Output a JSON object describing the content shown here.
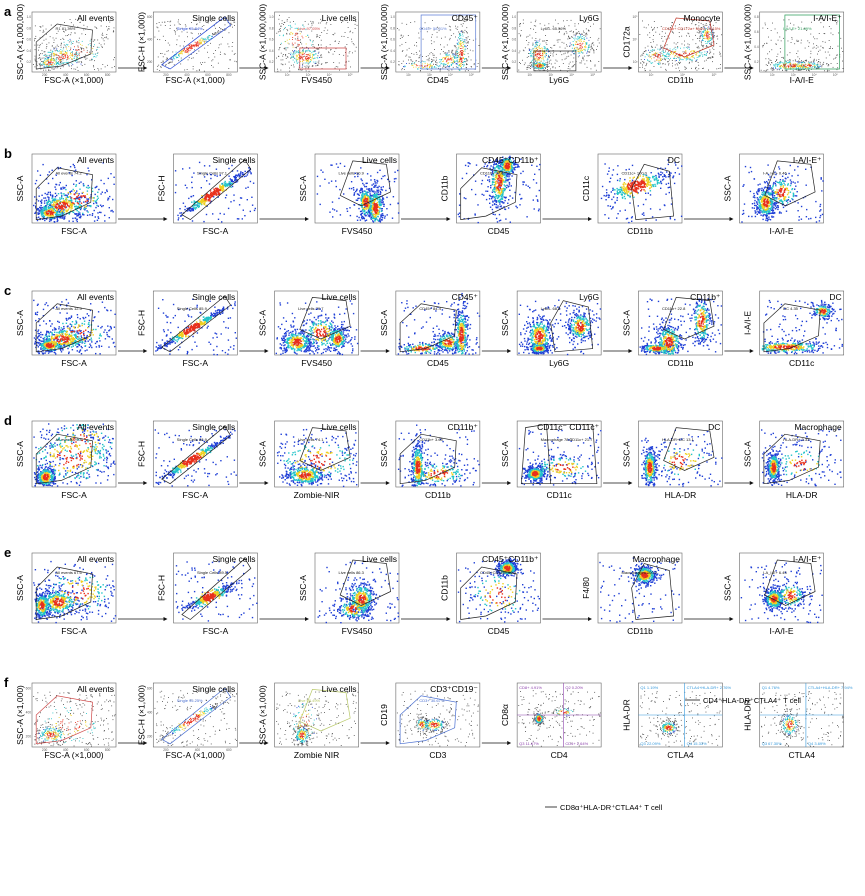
{
  "figure": {
    "rows": [
      {
        "letter": "a",
        "top": 4,
        "height": 84,
        "plots": [
          {
            "title": "All events",
            "xlabel": "FSC-A (×1,000)",
            "ylabel": "SSC-A (×1,000,000)",
            "gate": "polygon",
            "gate_color": "#333333",
            "gate_label": "R1 81.33%",
            "xticks": [
              "200",
              "400",
              "600",
              "800"
            ],
            "yticks": [
              "0.2",
              "0.4",
              "0.6",
              "0.8",
              "1.0"
            ],
            "density": "all",
            "style": "sparse"
          },
          {
            "title": "Single cells",
            "xlabel": "FSC-A (×1,000)",
            "ylabel": "FSC-H (×1,000)",
            "gate": "diagonal",
            "gate_color": "#2a4bd7",
            "gate_label": "Single 95.84%",
            "xticks": [
              "200",
              "400",
              "600",
              "800"
            ],
            "yticks": [
              "200",
              "400",
              "600"
            ],
            "density": "diag",
            "style": "sparse"
          },
          {
            "title": "Live cells",
            "xlabel": "FVS450",
            "ylabel": "SSC-A (×1,000,000)",
            "gate": "rect",
            "gate_color": "#d04a4a",
            "gate_label": "Live 97.05%",
            "xticks": [
              "10²",
              "10³",
              "10⁴",
              "10⁵"
            ],
            "yticks": [
              "0.2",
              "0.4",
              "0.6",
              "0.8",
              "1.0"
            ],
            "density": "live",
            "style": "sparse"
          },
          {
            "title": "CD45⁺",
            "xlabel": "CD45",
            "ylabel": "SSC-A (×1,000,000)",
            "gate": "rect",
            "gate_color": "#5f7fd6",
            "gate_label": "CD45+ 58.01%",
            "xticks": [
              "10²",
              "10³",
              "10⁴",
              "10⁵"
            ],
            "yticks": [
              "0.2",
              "0.4",
              "0.6",
              "0.8",
              "1.0"
            ],
            "density": "cd45",
            "style": "sparse"
          },
          {
            "title": "Ly6G",
            "xlabel": "Ly6G",
            "ylabel": "SSC-A (×1,000,000)",
            "gate": "rect",
            "gate_color": "#333333",
            "gate_label": "Ly6G- 65.56%",
            "xticks": [
              "10²",
              "10³",
              "10⁴",
              "10⁵"
            ],
            "yticks": [
              "0.2",
              "0.4",
              "0.6",
              "0.8",
              "1.0"
            ],
            "density": "ly6g",
            "style": "sparse"
          },
          {
            "title": "Monocyte",
            "xlabel": "CD11b",
            "ylabel": "CD172a",
            "gate": "polygon",
            "gate_color": "#c0392b",
            "gate_label": "CD11b+ CD172a+ Mono 16.15%",
            "xticks": [
              "10³",
              "10⁴",
              "10⁵"
            ],
            "yticks": [
              "10³",
              "10⁴",
              "10⁵"
            ],
            "density": "mono",
            "style": "sparse"
          },
          {
            "title": "I-A/I-E⁺",
            "xlabel": "I-A/I-E",
            "ylabel": "SSC-A (×1,000,000)",
            "gate": "rect",
            "gate_color": "#2e9e5b",
            "gate_label": "I-A/I-E+ 21.89%",
            "xticks": [
              "10²",
              "10³",
              "10⁴",
              "10⁵"
            ],
            "yticks": [
              "0.2",
              "0.4",
              "0.6",
              "0.8"
            ],
            "density": "iaie_low",
            "style": "sparse"
          }
        ]
      },
      {
        "letter": "b",
        "top": 146,
        "height": 93,
        "plots": [
          {
            "title": "All events",
            "xlabel": "FSC-A",
            "ylabel": "SSC-A",
            "gate": "polygon",
            "gate_color": "#222222",
            "gate_label": "All events 74.2",
            "xticks": [],
            "yticks": [],
            "density": "all",
            "style": "dense"
          },
          {
            "title": "Single cells",
            "xlabel": "FSC-A",
            "ylabel": "FSC-H",
            "gate": "diagonal",
            "gate_color": "#222222",
            "gate_label": "Single Cells 97.1",
            "xticks": [],
            "yticks": [],
            "density": "diag",
            "style": "dense"
          },
          {
            "title": "Live cells",
            "xlabel": "FVS450",
            "ylabel": "SSC-A",
            "gate": "polygon",
            "gate_color": "#222222",
            "gate_label": "Live cells 90.9",
            "xticks": [],
            "yticks": [],
            "density": "live_b",
            "style": "dense"
          },
          {
            "title": "CD45⁺CD11b⁺",
            "xlabel": "CD45",
            "ylabel": "CD11b",
            "gate": "polygon",
            "gate_color": "#222222",
            "gate_label": "CD11b+ 87.6",
            "xticks": [],
            "yticks": [],
            "density": "cd11b_high",
            "style": "dense"
          },
          {
            "title": "DC",
            "xlabel": "CD11b",
            "ylabel": "CD11c",
            "gate": "polygon",
            "gate_color": "#222222",
            "gate_label": "CD11c+ 100.0",
            "xticks": [],
            "yticks": [],
            "density": "dc_b",
            "style": "dense"
          },
          {
            "title": "I-A/I-E⁺",
            "xlabel": "I-A/I-E",
            "ylabel": "SSC-A",
            "gate": "polygon",
            "gate_color": "#222222",
            "gate_label": "I-A_I-E+ 0.46",
            "xticks": [],
            "yticks": [],
            "density": "iaie",
            "style": "dense"
          }
        ]
      },
      {
        "letter": "c",
        "top": 283,
        "height": 88,
        "plots": [
          {
            "title": "All events",
            "xlabel": "FSC-A",
            "ylabel": "SSC-A",
            "gate": "polygon",
            "gate_color": "#222222",
            "gate_label": "All events 12.5",
            "xticks": [],
            "yticks": [],
            "density": "all",
            "style": "dense"
          },
          {
            "title": "Single cells",
            "xlabel": "FSC-A",
            "ylabel": "FSC-H",
            "gate": "diagonal",
            "gate_color": "#222222",
            "gate_label": "Single Cells 85.9",
            "xticks": [],
            "yticks": [],
            "density": "diag",
            "style": "dense"
          },
          {
            "title": "Live cells",
            "xlabel": "FVS450",
            "ylabel": "SSC-A",
            "gate": "polygon",
            "gate_color": "#222222",
            "gate_label": "Live cells 79.7",
            "xticks": [],
            "yticks": [],
            "density": "live_c",
            "style": "dense"
          },
          {
            "title": "CD45⁺",
            "xlabel": "CD45",
            "ylabel": "SSC-A",
            "gate": "polygon",
            "gate_color": "#222222",
            "gate_label": "CD45+ 84.4",
            "xticks": [],
            "yticks": [],
            "density": "cd45",
            "style": "dense"
          },
          {
            "title": "Ly6G",
            "xlabel": "Ly6G",
            "ylabel": "SSC-A",
            "gate": "polygon",
            "gate_color": "#222222",
            "gate_label": "Ly6G- 68.2",
            "xticks": [],
            "yticks": [],
            "density": "ly6g",
            "style": "dense"
          },
          {
            "title": "CD11b⁺",
            "xlabel": "CD11b",
            "ylabel": "SSC-A",
            "gate": "polygon",
            "gate_color": "#222222",
            "gate_label": "CD11b+ 22.8",
            "xticks": [],
            "yticks": [],
            "density": "cd11b_c",
            "style": "dense"
          },
          {
            "title": "DC",
            "xlabel": "CD11c",
            "ylabel": "I-A/I-E",
            "gate": "polygon",
            "gate_color": "#222222",
            "gate_label": "DC 4.35",
            "xticks": [],
            "yticks": [],
            "density": "dc_c",
            "style": "dense"
          }
        ]
      },
      {
        "letter": "d",
        "top": 413,
        "height": 90,
        "plots": [
          {
            "title": "All events",
            "xlabel": "FSC-A",
            "ylabel": "SSC-A",
            "gate": "polygon",
            "gate_color": "#222222",
            "gate_label": "All events 79.8",
            "xticks": [],
            "yticks": [],
            "density": "all_d",
            "style": "dense"
          },
          {
            "title": "Single cells",
            "xlabel": "FSC-A",
            "ylabel": "FSC-H",
            "gate": "diagonal",
            "gate_color": "#222222",
            "gate_label": "Single Cells 88.9",
            "xticks": [],
            "yticks": [],
            "density": "diag",
            "style": "dense"
          },
          {
            "title": "Live cells",
            "xlabel": "Zombie-NIR",
            "ylabel": "SSC-A",
            "gate": "polygon",
            "gate_color": "#222222",
            "gate_label": "Live cells 74.1",
            "xticks": [],
            "yticks": [],
            "density": "live_d",
            "style": "dense"
          },
          {
            "title": "CD11b⁺",
            "xlabel": "CD11b",
            "ylabel": "SSC-A",
            "gate": "polygon",
            "gate_color": "#222222",
            "gate_label": "CD11b+ 3.65",
            "xticks": [],
            "yticks": [],
            "density": "cd11b_d",
            "style": "dense"
          },
          {
            "title": "CD11c⁻    CD11c⁺",
            "xlabel": "CD11c",
            "ylabel": "SSC-A",
            "gate": "polygon2",
            "gate_color": "#222222",
            "gate_label": "Macrophage 78.3",
            "gate_label2": "CD11c+ 21.7",
            "xticks": [],
            "yticks": [],
            "density": "cd11c_d",
            "style": "dense"
          },
          {
            "title": "DC",
            "xlabel": "HLA-DR",
            "ylabel": "SSC-A",
            "gate": "polygon",
            "gate_color": "#222222",
            "gate_label": "HLA-DR+DC 13.1",
            "xticks": [],
            "yticks": [],
            "density": "hla_d",
            "style": "dense"
          },
          {
            "title": "Macrophage",
            "xlabel": "HLA-DR",
            "ylabel": "SSC-A",
            "gate": "polygon",
            "gate_color": "#222222",
            "gate_label": "HLA-DR+ 3.33",
            "xticks": [],
            "yticks": [],
            "density": "hla_d2",
            "style": "dense"
          }
        ]
      },
      {
        "letter": "e",
        "top": 545,
        "height": 94,
        "plots": [
          {
            "title": "All events",
            "xlabel": "FSC-A",
            "ylabel": "SSC-A",
            "gate": "polygon",
            "gate_color": "#222222",
            "gate_label": "All events 67.6",
            "xticks": [],
            "yticks": [],
            "density": "all_e",
            "style": "dense"
          },
          {
            "title": "Single cells",
            "xlabel": "FSC-A",
            "ylabel": "FSC-H",
            "gate": "diagonal",
            "gate_color": "#222222",
            "gate_label": "Single Cells 89.5",
            "xticks": [],
            "yticks": [],
            "density": "diag_e",
            "style": "dense"
          },
          {
            "title": "Live cells",
            "xlabel": "FVS450",
            "ylabel": "SSC-A",
            "gate": "polygon",
            "gate_color": "#222222",
            "gate_label": "Live cells 86.3",
            "xticks": [],
            "yticks": [],
            "density": "live_e",
            "style": "dense"
          },
          {
            "title": "CD45⁺CD11b⁺",
            "xlabel": "CD45",
            "ylabel": "CD11b",
            "gate": "polygon",
            "gate_color": "#222222",
            "gate_label": "CD45+CD11b+ 59.0",
            "xticks": [],
            "yticks": [],
            "density": "cd45_e",
            "style": "dense"
          },
          {
            "title": "Macrophage",
            "xlabel": "CD11b",
            "ylabel": "F4/80",
            "gate": "polygon",
            "gate_color": "#222222",
            "gate_label": "Macrophages 100.0",
            "xticks": [],
            "yticks": [],
            "density": "mac_e",
            "style": "dense"
          },
          {
            "title": "I-A/I-E⁺",
            "xlabel": "I-A/I-E",
            "ylabel": "SSC-A",
            "gate": "polygon",
            "gate_color": "#222222",
            "gate_label": "I-A_I-E+ 6.45",
            "xticks": [],
            "yticks": [],
            "density": "iaie_e",
            "style": "dense"
          }
        ]
      },
      {
        "letter": "f",
        "top": 675,
        "height": 88,
        "plots": [
          {
            "title": "All events",
            "xlabel": "FSC-A (×1,000)",
            "ylabel": "SSC-A (×1,000)",
            "gate": "polygon",
            "gate_color": "#d04a4a",
            "gate_label": "",
            "xticks": [
              "200",
              "400",
              "600",
              "800"
            ],
            "yticks": [
              "200",
              "400",
              "600"
            ],
            "density": "all_f",
            "style": "sparse"
          },
          {
            "title": "Single cells",
            "xlabel": "FSC-A (×1,000)",
            "ylabel": "FSC-H (×1,000)",
            "gate": "diagonal",
            "gate_color": "#4a6fd0",
            "gate_label": "Single 95.25%",
            "xticks": [
              "200",
              "400",
              "600"
            ],
            "yticks": [
              "200",
              "400",
              "600"
            ],
            "density": "diag",
            "style": "sparse"
          },
          {
            "title": "Live cells",
            "xlabel": "Zombie NIR",
            "ylabel": "SSC-A (×1,000)",
            "gate": "polygon",
            "gate_color": "#b9c96a",
            "gate_label": "Live 98.49%",
            "xticks": [],
            "yticks": [],
            "density": "live_f",
            "style": "sparse"
          },
          {
            "title": "CD3⁺CD19⁻",
            "xlabel": "CD3",
            "ylabel": "CD19",
            "gate": "polygon",
            "gate_color": "#4a6fd0",
            "gate_label": "CD3+ 30.67%",
            "xticks": [],
            "yticks": [],
            "density": "cd3_f",
            "style": "sparse"
          },
          {
            "title": "",
            "xlabel": "CD4",
            "ylabel": "CD8α",
            "gate": "quad",
            "gate_color": "#8e44ad",
            "gate_label": "CD8+ 4.91%",
            "quad_labels": [
              "CD8+ 4.91%",
              "Q2 0.20%",
              "Q3 11.67%",
              "CD4+ 2.64%"
            ],
            "xticks": [],
            "yticks": [],
            "density": "quad_f",
            "style": "sparse"
          },
          {
            "title": "",
            "xlabel": "CTLA4",
            "ylabel": "HLA-DR",
            "gate": "quad",
            "gate_color": "#3498db",
            "gate_label": "",
            "quad_labels": [
              "Q1 1.19%",
              "CTLA4+HLA-DR+ 2.76%",
              "Q3 22.09%",
              "Q4 15.33%"
            ],
            "xticks": [],
            "yticks": [],
            "density": "quad_sparse",
            "style": "sparse"
          },
          {
            "title": "",
            "xlabel": "CTLA4",
            "ylabel": "HLA-DR",
            "gate": "quad",
            "gate_color": "#3498db",
            "gate_label": "",
            "quad_labels": [
              "Q1 4.76%",
              "CTLA4+HLA-DR+ 7.94%",
              "Q3 67.30%",
              "Q4 3.69%"
            ],
            "xticks": [],
            "yticks": [],
            "density": "quad_sparse2",
            "style": "sparse"
          }
        ]
      }
    ],
    "annotations": {
      "cd4_tcell": "CD4⁺HLA-DR⁺CTLA4⁺ T cell",
      "cd8_tcell": "CD8α⁺HLA-DR⁺CTLA4⁺ T cell"
    },
    "colors": {
      "density_low": "#1f3fd6",
      "density_mid": "#22c3c8",
      "density_high": "#f0d020",
      "density_peak": "#e8301c",
      "sparse_dot": "#555555",
      "arrow": "#111111"
    }
  },
  "chart_data": {
    "type": "scatter",
    "description_type": "flow cytometry gating strategy panels",
    "panels": [
      "a",
      "b",
      "c",
      "d",
      "e",
      "f"
    ],
    "gate_statistics": {
      "a": {
        "All events": "R1 81.33%",
        "Single cells": "Single 95.84%",
        "Live cells": "Live 97.05%",
        "CD45⁺": "CD45+ 58.01%",
        "Ly6G": "Ly6G- 65.56%",
        "Monocyte": "CD11b+ CD172a+ Mono 16.15%",
        "I-A/I-E⁺": "I-A/I-E+ 21.89%"
      },
      "b": {
        "All events": "74.2",
        "Single cells": "97.1",
        "Live cells": "90.9",
        "CD45⁺CD11b⁺": "87.6",
        "DC": "100.0",
        "I-A/I-E⁺": "0.46"
      },
      "c": {
        "All events": "12.5",
        "Single cells": "85.9",
        "Live cells": "79.7",
        "CD45⁺": "84.4",
        "Ly6G": "68.2",
        "CD11b⁺": "22.8",
        "DC": "4.35"
      },
      "d": {
        "All events": "79.8",
        "Single cells": "88.9",
        "Live cells": "74.1",
        "CD11b⁺": "3.65",
        "CD11c⁻": "78.3",
        "CD11c⁺": "21.7",
        "DC": "13.1",
        "Macrophage": "3.33"
      },
      "e": {
        "All events": "67.6",
        "Single cells": "89.5",
        "Live cells": "86.3",
        "CD45⁺CD11b⁺": "59.0",
        "Macrophage": "100.0",
        "I-A/I-E⁺": "6.45"
      },
      "f": {
        "Single cells": "95.25%",
        "Live cells": "98.49%",
        "CD3⁺CD19⁻": "30.67%",
        "CD8": "4.91%",
        "CD4": "2.64%"
      }
    }
  }
}
